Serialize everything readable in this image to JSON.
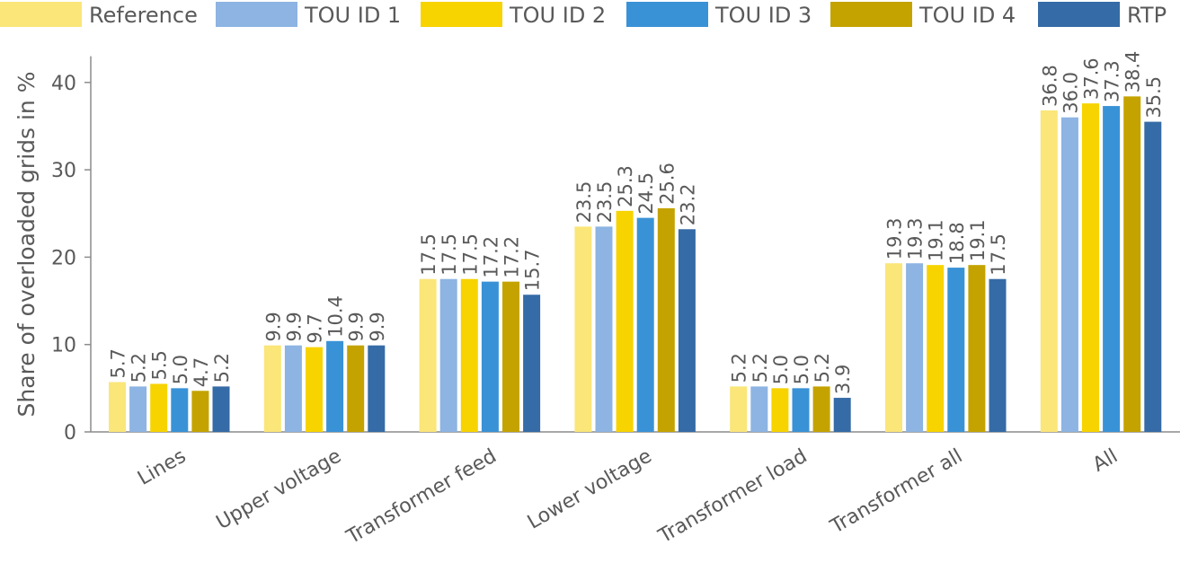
{
  "chart_data": {
    "type": "bar",
    "ylabel": "Share of overloaded grids in %",
    "ylim": [
      0,
      43
    ],
    "yticks": [
      0,
      10,
      20,
      30,
      40
    ],
    "grid": false,
    "legend_position": "top",
    "categories": [
      "Lines",
      "Upper voltage",
      "Transformer feed",
      "Lower voltage",
      "Transformer load",
      "Transformer all",
      "All"
    ],
    "series": [
      {
        "name": "Reference",
        "color": "#fae679",
        "values": [
          5.7,
          9.9,
          17.5,
          23.5,
          5.2,
          19.3,
          36.8
        ]
      },
      {
        "name": "TOU ID 1",
        "color": "#8db4e2",
        "values": [
          5.2,
          9.9,
          17.5,
          23.5,
          5.2,
          19.3,
          36.0
        ]
      },
      {
        "name": "TOU ID 2",
        "color": "#f7d300",
        "values": [
          5.5,
          9.7,
          17.5,
          25.3,
          5.0,
          19.1,
          37.6
        ]
      },
      {
        "name": "TOU ID 3",
        "color": "#3a92d6",
        "values": [
          5.0,
          10.4,
          17.2,
          24.5,
          5.0,
          18.8,
          37.3
        ]
      },
      {
        "name": "TOU ID 4",
        "color": "#c4a300",
        "values": [
          4.7,
          9.9,
          17.2,
          25.6,
          5.2,
          19.1,
          38.4
        ]
      },
      {
        "name": "RTP",
        "color": "#356ba6",
        "values": [
          5.2,
          9.9,
          15.7,
          23.2,
          3.9,
          17.5,
          35.5
        ]
      }
    ]
  }
}
